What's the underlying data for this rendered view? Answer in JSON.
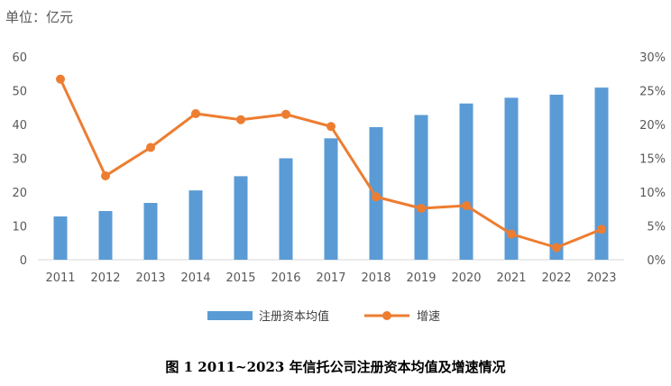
{
  "chart_data": {
    "type": "bar+line",
    "unit_label": "单位：亿元",
    "caption": "图 1 2011~2023 年信托公司注册资本均值及增速情况",
    "categories": [
      "2011",
      "2012",
      "2013",
      "2014",
      "2015",
      "2016",
      "2017",
      "2018",
      "2019",
      "2020",
      "2021",
      "2022",
      "2023"
    ],
    "y_left": {
      "min": 0,
      "max": 60,
      "step": 10,
      "ticks": [
        "0",
        "10",
        "20",
        "30",
        "40",
        "50",
        "60"
      ]
    },
    "y_right": {
      "min": 0,
      "max": 30,
      "step": 5,
      "ticks": [
        "0%",
        "5%",
        "10%",
        "15%",
        "20%",
        "25%",
        "30%"
      ]
    },
    "grid": false,
    "legend_position": "bottom",
    "series": [
      {
        "name": "注册资本均值",
        "type": "bar",
        "axis": "left",
        "color": "#5B9BD5",
        "values": [
          12.8,
          14.4,
          16.8,
          20.5,
          24.7,
          30.0,
          35.9,
          39.2,
          42.8,
          46.2,
          47.9,
          48.8,
          50.9
        ]
      },
      {
        "name": "增速",
        "type": "line",
        "axis": "right",
        "color": "#ED7D31",
        "values": [
          26.7,
          12.4,
          16.6,
          21.6,
          20.7,
          21.5,
          19.7,
          9.3,
          7.6,
          8.0,
          3.8,
          1.8,
          4.5
        ]
      }
    ]
  }
}
